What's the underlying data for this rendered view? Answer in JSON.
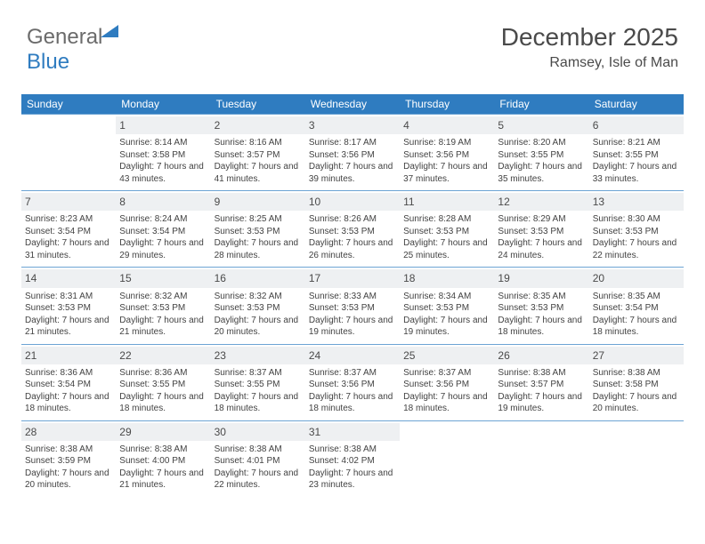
{
  "brand": {
    "part1": "General",
    "part2": "Blue"
  },
  "title": "December 2025",
  "location": "Ramsey, Isle of Man",
  "colors": {
    "header_bg": "#2f7cc0",
    "header_text": "#ffffff",
    "daynum_bg": "#eef0f2",
    "cell_text": "#424242",
    "rule": "#6da4d4"
  },
  "dayNames": [
    "Sunday",
    "Monday",
    "Tuesday",
    "Wednesday",
    "Thursday",
    "Friday",
    "Saturday"
  ],
  "labels": {
    "sunrise": "Sunrise:",
    "sunset": "Sunset:",
    "daylight": "Daylight:"
  },
  "weeks": [
    [
      null,
      {
        "n": "1",
        "sunrise": "8:14 AM",
        "sunset": "3:58 PM",
        "daylight": "7 hours and 43 minutes."
      },
      {
        "n": "2",
        "sunrise": "8:16 AM",
        "sunset": "3:57 PM",
        "daylight": "7 hours and 41 minutes."
      },
      {
        "n": "3",
        "sunrise": "8:17 AM",
        "sunset": "3:56 PM",
        "daylight": "7 hours and 39 minutes."
      },
      {
        "n": "4",
        "sunrise": "8:19 AM",
        "sunset": "3:56 PM",
        "daylight": "7 hours and 37 minutes."
      },
      {
        "n": "5",
        "sunrise": "8:20 AM",
        "sunset": "3:55 PM",
        "daylight": "7 hours and 35 minutes."
      },
      {
        "n": "6",
        "sunrise": "8:21 AM",
        "sunset": "3:55 PM",
        "daylight": "7 hours and 33 minutes."
      }
    ],
    [
      {
        "n": "7",
        "sunrise": "8:23 AM",
        "sunset": "3:54 PM",
        "daylight": "7 hours and 31 minutes."
      },
      {
        "n": "8",
        "sunrise": "8:24 AM",
        "sunset": "3:54 PM",
        "daylight": "7 hours and 29 minutes."
      },
      {
        "n": "9",
        "sunrise": "8:25 AM",
        "sunset": "3:53 PM",
        "daylight": "7 hours and 28 minutes."
      },
      {
        "n": "10",
        "sunrise": "8:26 AM",
        "sunset": "3:53 PM",
        "daylight": "7 hours and 26 minutes."
      },
      {
        "n": "11",
        "sunrise": "8:28 AM",
        "sunset": "3:53 PM",
        "daylight": "7 hours and 25 minutes."
      },
      {
        "n": "12",
        "sunrise": "8:29 AM",
        "sunset": "3:53 PM",
        "daylight": "7 hours and 24 minutes."
      },
      {
        "n": "13",
        "sunrise": "8:30 AM",
        "sunset": "3:53 PM",
        "daylight": "7 hours and 22 minutes."
      }
    ],
    [
      {
        "n": "14",
        "sunrise": "8:31 AM",
        "sunset": "3:53 PM",
        "daylight": "7 hours and 21 minutes."
      },
      {
        "n": "15",
        "sunrise": "8:32 AM",
        "sunset": "3:53 PM",
        "daylight": "7 hours and 21 minutes."
      },
      {
        "n": "16",
        "sunrise": "8:32 AM",
        "sunset": "3:53 PM",
        "daylight": "7 hours and 20 minutes."
      },
      {
        "n": "17",
        "sunrise": "8:33 AM",
        "sunset": "3:53 PM",
        "daylight": "7 hours and 19 minutes."
      },
      {
        "n": "18",
        "sunrise": "8:34 AM",
        "sunset": "3:53 PM",
        "daylight": "7 hours and 19 minutes."
      },
      {
        "n": "19",
        "sunrise": "8:35 AM",
        "sunset": "3:53 PM",
        "daylight": "7 hours and 18 minutes."
      },
      {
        "n": "20",
        "sunrise": "8:35 AM",
        "sunset": "3:54 PM",
        "daylight": "7 hours and 18 minutes."
      }
    ],
    [
      {
        "n": "21",
        "sunrise": "8:36 AM",
        "sunset": "3:54 PM",
        "daylight": "7 hours and 18 minutes."
      },
      {
        "n": "22",
        "sunrise": "8:36 AM",
        "sunset": "3:55 PM",
        "daylight": "7 hours and 18 minutes."
      },
      {
        "n": "23",
        "sunrise": "8:37 AM",
        "sunset": "3:55 PM",
        "daylight": "7 hours and 18 minutes."
      },
      {
        "n": "24",
        "sunrise": "8:37 AM",
        "sunset": "3:56 PM",
        "daylight": "7 hours and 18 minutes."
      },
      {
        "n": "25",
        "sunrise": "8:37 AM",
        "sunset": "3:56 PM",
        "daylight": "7 hours and 18 minutes."
      },
      {
        "n": "26",
        "sunrise": "8:38 AM",
        "sunset": "3:57 PM",
        "daylight": "7 hours and 19 minutes."
      },
      {
        "n": "27",
        "sunrise": "8:38 AM",
        "sunset": "3:58 PM",
        "daylight": "7 hours and 20 minutes."
      }
    ],
    [
      {
        "n": "28",
        "sunrise": "8:38 AM",
        "sunset": "3:59 PM",
        "daylight": "7 hours and 20 minutes."
      },
      {
        "n": "29",
        "sunrise": "8:38 AM",
        "sunset": "4:00 PM",
        "daylight": "7 hours and 21 minutes."
      },
      {
        "n": "30",
        "sunrise": "8:38 AM",
        "sunset": "4:01 PM",
        "daylight": "7 hours and 22 minutes."
      },
      {
        "n": "31",
        "sunrise": "8:38 AM",
        "sunset": "4:02 PM",
        "daylight": "7 hours and 23 minutes."
      },
      null,
      null,
      null
    ]
  ]
}
